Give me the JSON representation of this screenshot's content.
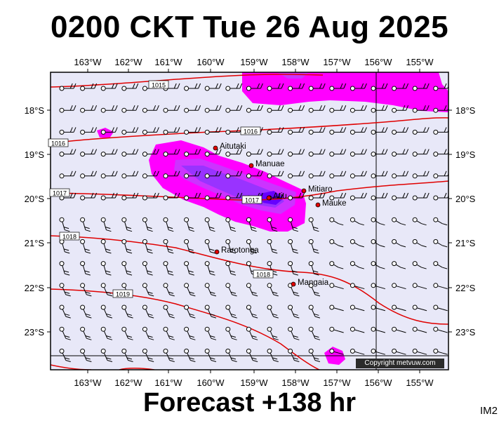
{
  "header": {
    "title": "0200 CKT Tue 26 Aug 2025"
  },
  "footer": {
    "forecast_label": "Forecast +138 hr",
    "code": "IM2",
    "copyright": "Copyright metvuw.com"
  },
  "map": {
    "lon_ticks": [
      "163°W",
      "162°W",
      "161°W",
      "160°W",
      "159°W",
      "158°W",
      "157°W",
      "156°W",
      "155°W"
    ],
    "lat_ticks": [
      "18°S",
      "19°S",
      "20°S",
      "21°S",
      "22°S",
      "23°S"
    ],
    "background_color": "#e8e8f8",
    "isobar_color": "#e00000",
    "rain_colors": [
      "#ff00ff",
      "#cc33ff",
      "#9933ff",
      "#6600ff"
    ],
    "isobar_labels": [
      "1015",
      "1016",
      "1016",
      "1017",
      "1017",
      "1018",
      "1018",
      "1019"
    ],
    "places": [
      "Aitutaki",
      "Manuae",
      "Atiu",
      "Mitiaro",
      "Mauke",
      "Rarotonga",
      "Mangaia"
    ]
  }
}
